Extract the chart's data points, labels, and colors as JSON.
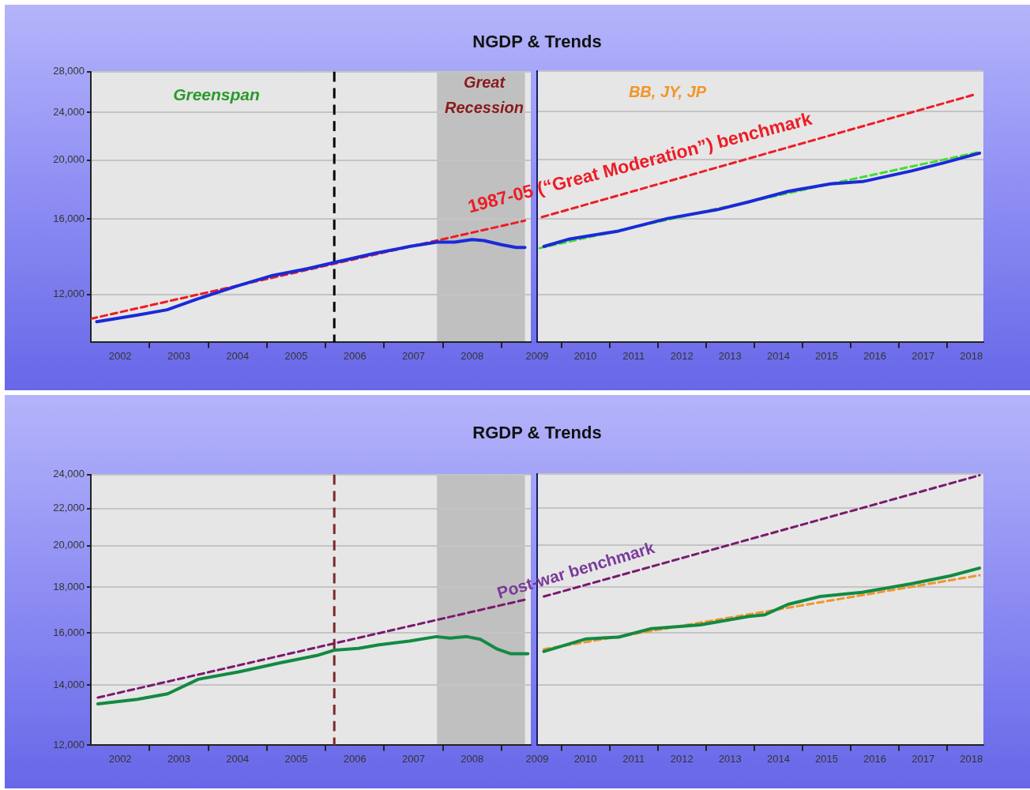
{
  "chart_data": [
    {
      "type": "line",
      "title": "NGDP & Trends",
      "log": "y",
      "grid": "y",
      "marker": "none",
      "xlim": [
        2002,
        2009.5
      ],
      "xticks": [
        {
          "value": 2002.5,
          "label": "2002"
        },
        {
          "value": 2003,
          "label": null
        },
        {
          "value": 2003.5,
          "label": "2003"
        },
        {
          "value": 2004,
          "label": null
        },
        {
          "value": 2004.5,
          "label": "2004"
        },
        {
          "value": 2005,
          "label": null
        },
        {
          "value": 2005.5,
          "label": "2005"
        },
        {
          "value": 2006,
          "label": null
        },
        {
          "value": 2006.5,
          "label": "2006"
        },
        {
          "value": 2007,
          "label": null
        },
        {
          "value": 2007.5,
          "label": "2007"
        },
        {
          "value": 2008,
          "label": null
        },
        {
          "value": 2008.5,
          "label": "2008"
        },
        {
          "value": 2009,
          "label": null
        }
      ],
      "ylim": [
        10000,
        28000
      ],
      "yticks": [
        {
          "value": 12000,
          "label": "12,000"
        },
        {
          "value": 16000,
          "label": "16,000"
        },
        {
          "value": 20000,
          "label": "20,000"
        },
        {
          "value": 24000,
          "label": "24,000"
        },
        {
          "value": 28000,
          "label": "28,000"
        }
      ],
      "series": [
        {
          "color": "#1a2ad8",
          "line_style": "solid",
          "x": [
            2002.1,
            2002.8,
            2003.3,
            2003.8,
            2004.5,
            2005.1,
            2005.7,
            2006.15,
            2006.85,
            2007.45,
            2007.9,
            2008.2,
            2008.5,
            2008.7,
            2009.0,
            2009.25,
            2009.4
          ],
          "values": [
            10820,
            11100,
            11320,
            11780,
            12400,
            12900,
            13240,
            13550,
            14040,
            14410,
            14640,
            14640,
            14790,
            14730,
            14500,
            14350,
            14350
          ]
        },
        {
          "color": "#ee1c25",
          "line_style": "dashed",
          "x": [
            2002.0,
            2009.4
          ],
          "values": [
            10940,
            15890
          ]
        }
      ],
      "bands": [
        {
          "axis": "x",
          "from": 2007.9,
          "to": 2009.4,
          "color": "#c0c0c0"
        }
      ],
      "ref_lines": [
        {
          "axis": "x",
          "value": 2006.15,
          "color": "#000000",
          "line_style": "dashed"
        }
      ],
      "annotations": [
        "Greenspan",
        "Great Recession"
      ]
    },
    {
      "type": "line",
      "log": "y",
      "grid": "y",
      "marker": "none",
      "tick_labels": "x",
      "xlim": [
        2009.5,
        2018.75
      ],
      "xticks": [
        {
          "value": 2009.5,
          "label": "2009"
        },
        {
          "value": 2010,
          "label": null
        },
        {
          "value": 2010.5,
          "label": "2010"
        },
        {
          "value": 2011,
          "label": null
        },
        {
          "value": 2011.5,
          "label": "2011"
        },
        {
          "value": 2012,
          "label": null
        },
        {
          "value": 2012.5,
          "label": "2012"
        },
        {
          "value": 2013,
          "label": null
        },
        {
          "value": 2013.5,
          "label": "2013"
        },
        {
          "value": 2014,
          "label": null
        },
        {
          "value": 2014.5,
          "label": "2014"
        },
        {
          "value": 2015,
          "label": null
        },
        {
          "value": 2015.5,
          "label": "2015"
        },
        {
          "value": 2016,
          "label": null
        },
        {
          "value": 2016.5,
          "label": "2016"
        },
        {
          "value": 2017,
          "label": null
        },
        {
          "value": 2017.5,
          "label": "2017"
        },
        {
          "value": 2018,
          "label": null
        },
        {
          "value": 2018.5,
          "label": "2018"
        }
      ],
      "ylim": [
        10000,
        28000
      ],
      "yticks": [
        12000,
        16000,
        20000,
        24000,
        28000
      ],
      "series": [
        {
          "color": "#1a2ad8",
          "line_style": "solid",
          "x": [
            2009.64,
            2010.18,
            2011.19,
            2012.2,
            2013.22,
            2013.89,
            2014.7,
            2015.58,
            2016.25,
            2017.26,
            2017.93,
            2018.67
          ],
          "values": [
            14390,
            14810,
            15260,
            16000,
            16540,
            17050,
            17740,
            18250,
            18410,
            19170,
            19770,
            20510
          ]
        },
        {
          "color": "#44dd33",
          "line_style": "dashed",
          "x": [
            2009.55,
            2013.22,
            2015.58,
            2018.67
          ],
          "values": [
            14300,
            16600,
            18250,
            20600
          ]
        },
        {
          "color": "#ee1c25",
          "line_style": "dashed",
          "x": [
            2009.6,
            2018.57
          ],
          "values": [
            16090,
            25620
          ]
        }
      ],
      "annotations": [
        "BB, JY, JP",
        "1987-05 (“Great Moderation”) benchmark"
      ]
    },
    {
      "type": "line",
      "title": "RGDP & Trends",
      "log": "y",
      "grid": "y",
      "marker": "none",
      "xlim": [
        2002,
        2009.5
      ],
      "xticks": [
        {
          "value": 2002.5,
          "label": "2002"
        },
        {
          "value": 2003,
          "label": null
        },
        {
          "value": 2003.5,
          "label": "2003"
        },
        {
          "value": 2004,
          "label": null
        },
        {
          "value": 2004.5,
          "label": "2004"
        },
        {
          "value": 2005,
          "label": null
        },
        {
          "value": 2005.5,
          "label": "2005"
        },
        {
          "value": 2006,
          "label": null
        },
        {
          "value": 2006.5,
          "label": "2006"
        },
        {
          "value": 2007,
          "label": null
        },
        {
          "value": 2007.5,
          "label": "2007"
        },
        {
          "value": 2008,
          "label": null
        },
        {
          "value": 2008.5,
          "label": "2008"
        },
        {
          "value": 2009,
          "label": null
        }
      ],
      "ylim": [
        12000,
        24000
      ],
      "yticks": [
        {
          "value": 12000,
          "label": "12,000"
        },
        {
          "value": 14000,
          "label": "14,000"
        },
        {
          "value": 16000,
          "label": "16,000"
        },
        {
          "value": 18000,
          "label": "18,000"
        },
        {
          "value": 20000,
          "label": "20,000"
        },
        {
          "value": 22000,
          "label": "22,000"
        },
        {
          "value": 24000,
          "label": "24,000"
        }
      ],
      "series": [
        {
          "color": "#138a43",
          "line_style": "solid",
          "x": [
            2002.12,
            2002.79,
            2003.31,
            2003.83,
            2004.52,
            2005.23,
            2005.85,
            2006.15,
            2006.56,
            2006.91,
            2007.43,
            2007.89,
            2008.12,
            2008.41,
            2008.64,
            2008.93,
            2009.16,
            2009.45
          ],
          "values": [
            13340,
            13500,
            13690,
            14210,
            14480,
            14820,
            15100,
            15310,
            15380,
            15520,
            15670,
            15850,
            15790,
            15850,
            15740,
            15350,
            15170,
            15170
          ]
        },
        {
          "color": "#7a1a6e",
          "line_style": "dashed",
          "x": [
            2002.12,
            2009.43
          ],
          "values": [
            13560,
            17440
          ]
        }
      ],
      "bands": [
        {
          "axis": "x",
          "from": 2007.9,
          "to": 2009.4,
          "color": "#c0c0c0"
        }
      ],
      "ref_lines": [
        {
          "axis": "x",
          "value": 2006.15,
          "color": "#7a2a2a",
          "line_style": "dashed"
        }
      ]
    },
    {
      "type": "line",
      "log": "y",
      "grid": "y",
      "marker": "none",
      "tick_labels": "x",
      "xlim": [
        2009.5,
        2018.75
      ],
      "xticks": [
        {
          "value": 2009.5,
          "label": "2009"
        },
        {
          "value": 2010,
          "label": null
        },
        {
          "value": 2010.5,
          "label": "2010"
        },
        {
          "value": 2011,
          "label": null
        },
        {
          "value": 2011.5,
          "label": "2011"
        },
        {
          "value": 2012,
          "label": null
        },
        {
          "value": 2012.5,
          "label": "2012"
        },
        {
          "value": 2013,
          "label": null
        },
        {
          "value": 2013.5,
          "label": "2013"
        },
        {
          "value": 2014,
          "label": null
        },
        {
          "value": 2014.5,
          "label": "2014"
        },
        {
          "value": 2015,
          "label": null
        },
        {
          "value": 2015.5,
          "label": "2015"
        },
        {
          "value": 2016,
          "label": null
        },
        {
          "value": 2016.5,
          "label": "2016"
        },
        {
          "value": 2017,
          "label": null
        },
        {
          "value": 2017.5,
          "label": "2017"
        },
        {
          "value": 2018,
          "label": null
        },
        {
          "value": 2018.5,
          "label": "2018"
        }
      ],
      "ylim": [
        12000,
        24000
      ],
      "yticks": [
        12000,
        14000,
        16000,
        18000,
        20000,
        22000,
        24000
      ],
      "series": [
        {
          "color": "#138a43",
          "line_style": "solid",
          "x": [
            2009.64,
            2010.52,
            2011.19,
            2011.87,
            2012.88,
            2013.89,
            2014.22,
            2014.7,
            2015.37,
            2016.24,
            2017.25,
            2018.06,
            2018.67
          ],
          "values": [
            15250,
            15750,
            15820,
            16170,
            16320,
            16680,
            16750,
            17200,
            17550,
            17740,
            18130,
            18500,
            18870
          ]
        },
        {
          "color": "#f0962a",
          "line_style": "dashed",
          "x": [
            2009.64,
            2018.67
          ],
          "values": [
            15340,
            18530
          ]
        },
        {
          "color": "#7a1a6e",
          "line_style": "dashed",
          "x": [
            2009.64,
            2018.67
          ],
          "values": [
            17550,
            23920
          ]
        }
      ],
      "annotations": [
        "Post-war benchmark"
      ]
    }
  ]
}
